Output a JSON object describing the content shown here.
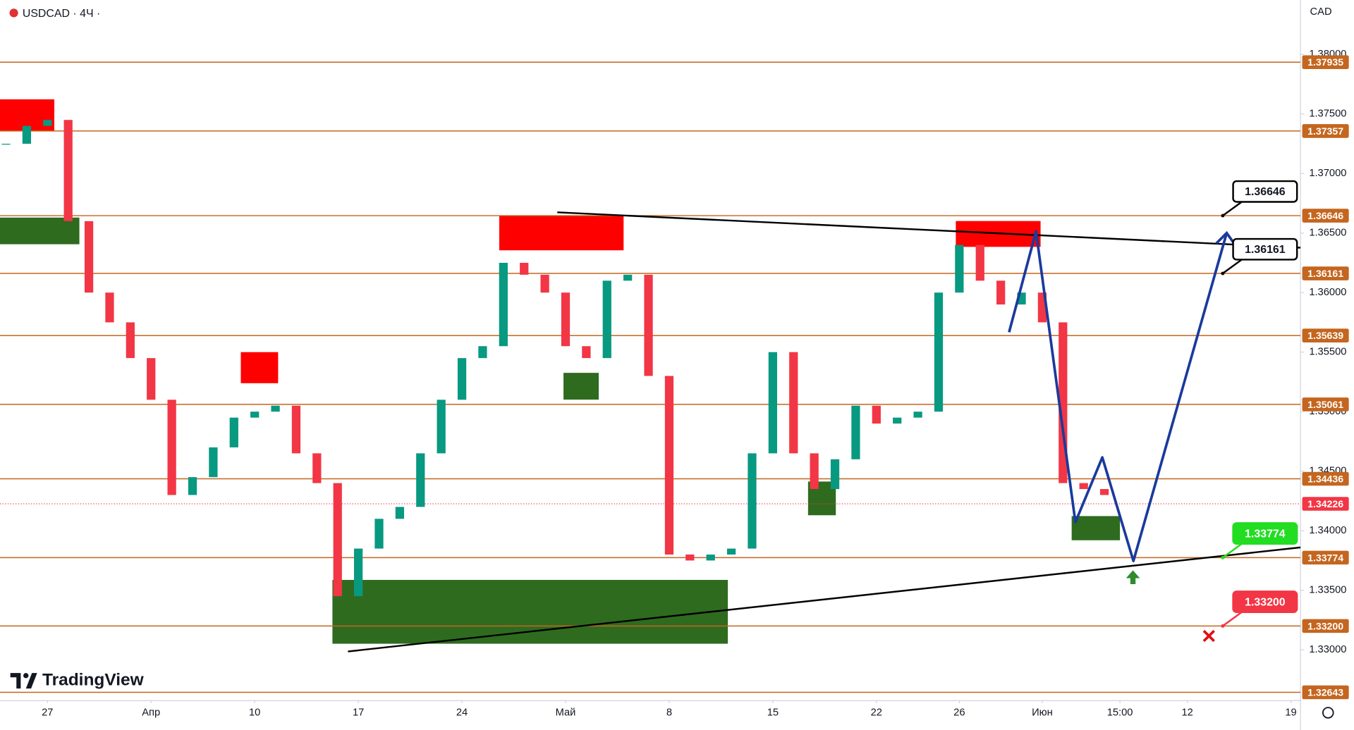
{
  "header": {
    "symbol": "USDCAD · 4Ч ·",
    "currency": "CAD",
    "brand": "TradingView"
  },
  "chart_data": {
    "type": "candlestick",
    "x": [
      -2,
      -1,
      0,
      1,
      2,
      3,
      4,
      5,
      6,
      7,
      8,
      9,
      10,
      11,
      12,
      13,
      14,
      15,
      16,
      17,
      18,
      19,
      20,
      21,
      22,
      23,
      24,
      25,
      26,
      27,
      28,
      29,
      30,
      31,
      32,
      33,
      34,
      35,
      36,
      37,
      38,
      39,
      40,
      41,
      42,
      43,
      44,
      45,
      46,
      47,
      48,
      49,
      50,
      51
    ],
    "values": [
      1.3725,
      1.374,
      1.3745,
      1.366,
      1.36,
      1.3575,
      1.3545,
      1.351,
      1.343,
      1.3445,
      1.347,
      1.3495,
      1.35,
      1.3505,
      1.3465,
      1.344,
      1.3345,
      1.3385,
      1.341,
      1.342,
      1.3465,
      1.351,
      1.3545,
      1.3555,
      1.3625,
      1.3615,
      1.36,
      1.3555,
      1.3545,
      1.361,
      1.3615,
      1.353,
      1.338,
      1.3375,
      1.338,
      1.3385,
      1.3465,
      1.355,
      1.3465,
      1.3435,
      1.346,
      1.3505,
      1.349,
      1.3495,
      1.35,
      1.36,
      1.364,
      1.361,
      1.359,
      1.36,
      1.3575,
      1.344,
      1.3435,
      1.343
    ],
    "colors": {
      "up": "#089981",
      "down": "#f23645"
    },
    "xlim": [
      -2.29,
      60.46
    ],
    "xticks": [
      {
        "value": 0,
        "label": "27"
      },
      {
        "value": 5,
        "label": "Апр"
      },
      {
        "value": 10,
        "label": "10"
      },
      {
        "value": 15,
        "label": "17"
      },
      {
        "value": 20,
        "label": "24"
      },
      {
        "value": 25,
        "label": "Май"
      },
      {
        "value": 30,
        "label": "8"
      },
      {
        "value": 35,
        "label": "15"
      },
      {
        "value": 40,
        "label": "22"
      },
      {
        "value": 44,
        "label": "26"
      },
      {
        "value": 48,
        "label": "Июн"
      },
      {
        "value": 51.75,
        "label": "15:00"
      },
      {
        "value": 55,
        "label": "12"
      },
      {
        "value": 60,
        "label": "19"
      }
    ],
    "ylim": [
      1.32573,
      1.38457
    ],
    "yticks": [
      {
        "value": 1.38,
        "label": "1.38000"
      },
      {
        "value": 1.375,
        "label": "1.37500"
      },
      {
        "value": 1.37,
        "label": "1.37000"
      },
      {
        "value": 1.365,
        "label": "1.36500"
      },
      {
        "value": 1.36,
        "label": "1.36000"
      },
      {
        "value": 1.355,
        "label": "1.35500"
      },
      {
        "value": 1.35,
        "label": "1.35000"
      },
      {
        "value": 1.345,
        "label": "1.34500"
      },
      {
        "value": 1.34,
        "label": "1.34000"
      },
      {
        "value": 1.335,
        "label": "1.33500"
      },
      {
        "value": 1.33,
        "label": "1.33000"
      }
    ],
    "current_price": 1.34226,
    "levels": [
      1.37935,
      1.37357,
      1.36646,
      1.36161,
      1.35639,
      1.35061,
      1.34436,
      1.33774,
      {
        "value": 1.332,
        "label": "1.33200"
      },
      1.32643
    ],
    "level_color": "#c4661f",
    "zones": [
      {
        "x": [
          -2.29,
          0.33
        ],
        "y": [
          1.37355,
          1.37623
        ],
        "color": "#ff0000"
      },
      {
        "x": [
          -2.29,
          1.54
        ],
        "y": [
          1.36406,
          1.3663
        ],
        "color": "#2e6b1f"
      },
      {
        "x": [
          9.33,
          11.13
        ],
        "y": [
          1.35239,
          1.355
        ],
        "color": "#ff0000"
      },
      {
        "x": [
          21.8,
          27.8
        ],
        "y": [
          1.36355,
          1.36645
        ],
        "color": "#ff0000"
      },
      {
        "x": [
          24.9,
          26.6
        ],
        "y": [
          1.35101,
          1.35326
        ],
        "color": "#2e6b1f"
      },
      {
        "x": [
          13.75,
          32.83
        ],
        "y": [
          1.33051,
          1.33587
        ],
        "color": "#2e6b1f"
      },
      {
        "x": [
          36.7,
          38.04
        ],
        "y": [
          1.3413,
          1.34413
        ],
        "color": "#2e6b1f"
      },
      {
        "x": [
          43.83,
          47.92
        ],
        "y": [
          1.36384,
          1.36601
        ],
        "color": "#ff0000"
      },
      {
        "x": [
          49.42,
          51.75
        ],
        "y": [
          1.3392,
          1.34123
        ],
        "color": "#2e6b1f"
      }
    ],
    "trend_lines": [
      {
        "x": [
          14.5,
          60.46
        ],
        "y": [
          1.32986,
          1.3386
        ]
      },
      {
        "x": [
          24.6,
          60.46
        ],
        "y": [
          1.36674,
          1.36377
        ]
      }
    ],
    "projection": {
      "x": [
        46.4,
        47.7,
        49.6,
        50.9,
        52.4,
        56.9
      ],
      "y": [
        1.35667,
        1.36514,
        1.34072,
        1.34616,
        1.33746,
        1.365
      ],
      "color": "#1a3a9c"
    },
    "callouts": {
      "values": [
        1.36646,
        1.36161,
        1.33774,
        1.332
      ],
      "value_labels": [
        "1.36646",
        "1.36161",
        "1.33774",
        "1.33200"
      ],
      "colors": [
        "#000000",
        "#000000",
        "#22dd22",
        "#f23645"
      ]
    }
  }
}
